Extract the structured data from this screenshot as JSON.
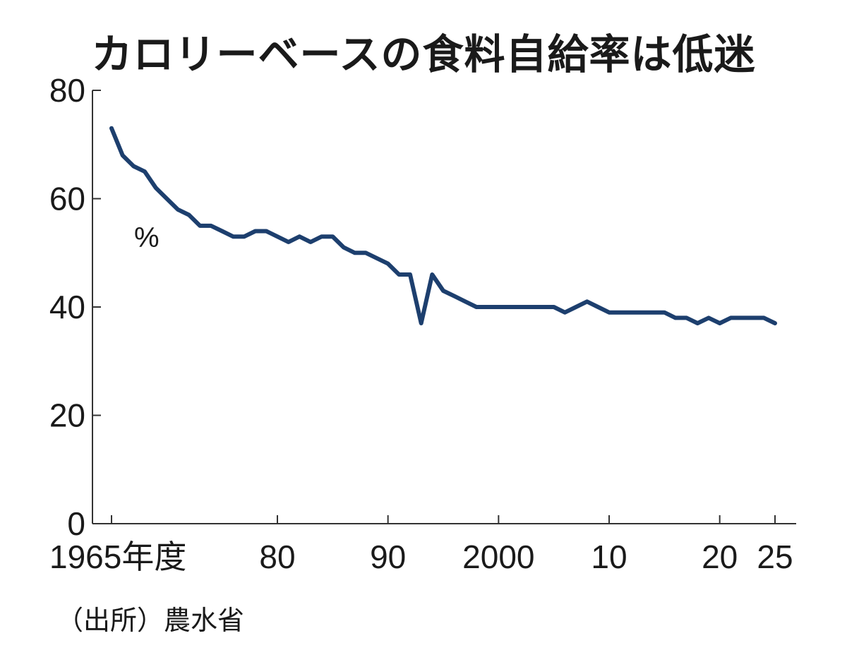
{
  "chart_data": {
    "type": "line",
    "title": "カロリーベースの食料自給率は低迷",
    "xlabel": "",
    "ylabel": "%",
    "source": "（出所）農水省",
    "ylim": [
      0,
      80
    ],
    "xlim": [
      1965,
      2025
    ],
    "yticks": [
      {
        "value": 0,
        "label": "0"
      },
      {
        "value": 20,
        "label": "20"
      },
      {
        "value": 40,
        "label": "40"
      },
      {
        "value": 60,
        "label": "60"
      },
      {
        "value": 80,
        "label": "80"
      }
    ],
    "xticks": [
      {
        "value": 1965,
        "label": "1965年度"
      },
      {
        "value": 1980,
        "label": "80"
      },
      {
        "value": 1990,
        "label": "90"
      },
      {
        "value": 2000,
        "label": "2000"
      },
      {
        "value": 2010,
        "label": "10"
      },
      {
        "value": 2020,
        "label": "20"
      },
      {
        "value": 2025,
        "label": "25"
      }
    ],
    "grid": false,
    "line_color": "#1d3f6e",
    "series": [
      {
        "name": "",
        "x": [
          1965,
          1966,
          1967,
          1968,
          1969,
          1970,
          1971,
          1972,
          1973,
          1974,
          1975,
          1976,
          1977,
          1978,
          1979,
          1980,
          1981,
          1982,
          1983,
          1984,
          1985,
          1986,
          1987,
          1988,
          1989,
          1990,
          1991,
          1992,
          1993,
          1994,
          1995,
          1996,
          1997,
          1998,
          1999,
          2000,
          2001,
          2002,
          2003,
          2004,
          2005,
          2006,
          2007,
          2008,
          2009,
          2010,
          2011,
          2012,
          2013,
          2014,
          2015,
          2016,
          2017,
          2018,
          2019,
          2020,
          2021,
          2022,
          2023,
          2024,
          2025
        ],
        "values": [
          73,
          68,
          66,
          65,
          62,
          60,
          58,
          57,
          55,
          55,
          54,
          53,
          53,
          54,
          54,
          53,
          52,
          53,
          52,
          53,
          53,
          51,
          50,
          50,
          49,
          48,
          46,
          46,
          37,
          46,
          43,
          42,
          41,
          40,
          40,
          40,
          40,
          40,
          40,
          40,
          40,
          39,
          40,
          41,
          40,
          39,
          39,
          39,
          39,
          39,
          39,
          38,
          38,
          37,
          38,
          37,
          38,
          38,
          38,
          38,
          37
        ]
      }
    ]
  }
}
